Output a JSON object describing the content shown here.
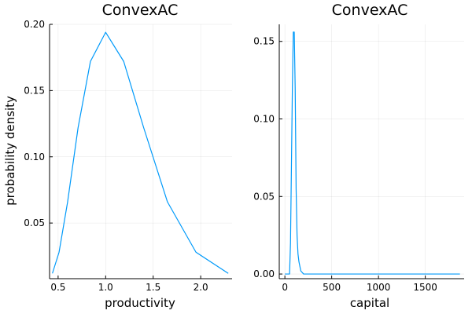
{
  "chart_data": [
    {
      "type": "line",
      "title": "ConvexAC",
      "xlabel": "productivity",
      "ylabel": "probability density",
      "xlim": [
        0.41,
        2.33
      ],
      "ylim": [
        0.008,
        0.2
      ],
      "grid": true,
      "legend": "none",
      "line_color": "#009AFA",
      "xticks": [
        {
          "value": 0.5,
          "label": "0.5"
        },
        {
          "value": 1.0,
          "label": "1.0"
        },
        {
          "value": 1.5,
          "label": "1.5"
        },
        {
          "value": 2.0,
          "label": "2.0"
        }
      ],
      "yticks": [
        {
          "value": 0.05,
          "label": "0.05"
        },
        {
          "value": 0.1,
          "label": "0.10"
        },
        {
          "value": 0.15,
          "label": "0.15"
        },
        {
          "value": 0.2,
          "label": "0.20"
        }
      ],
      "series": [
        {
          "x": [
            0.44,
            0.51,
            0.6,
            0.71,
            0.84,
            1.0,
            1.19,
            1.4,
            1.65,
            1.95,
            2.29
          ],
          "y": [
            0.012,
            0.028,
            0.066,
            0.122,
            0.172,
            0.194,
            0.172,
            0.122,
            0.066,
            0.028,
            0.012
          ]
        }
      ]
    },
    {
      "type": "line",
      "title": "ConvexAC",
      "xlabel": "capital",
      "ylabel": "",
      "xlim": [
        -60,
        1915
      ],
      "ylim": [
        -0.003,
        0.161
      ],
      "grid": true,
      "legend": "none",
      "line_color": "#009AFA",
      "xticks": [
        {
          "value": 0,
          "label": "0"
        },
        {
          "value": 500,
          "label": "500"
        },
        {
          "value": 1000,
          "label": "1000"
        },
        {
          "value": 1500,
          "label": "1500"
        }
      ],
      "yticks": [
        {
          "value": 0.0,
          "label": "0.00"
        },
        {
          "value": 0.05,
          "label": "0.05"
        },
        {
          "value": 0.1,
          "label": "0.10"
        },
        {
          "value": 0.15,
          "label": "0.15"
        }
      ],
      "series": [
        {
          "x": [
            0,
            25,
            50,
            60,
            70,
            80,
            90,
            100,
            110,
            120,
            130,
            140,
            150,
            170,
            200,
            400,
            800,
            1200,
            1600,
            1870
          ],
          "y": [
            0,
            0,
            0,
            0.02,
            0.07,
            0.12,
            0.156,
            0.156,
            0.12,
            0.055,
            0.025,
            0.013,
            0.008,
            0.002,
            0,
            0,
            0,
            0,
            0,
            0
          ]
        }
      ]
    }
  ]
}
